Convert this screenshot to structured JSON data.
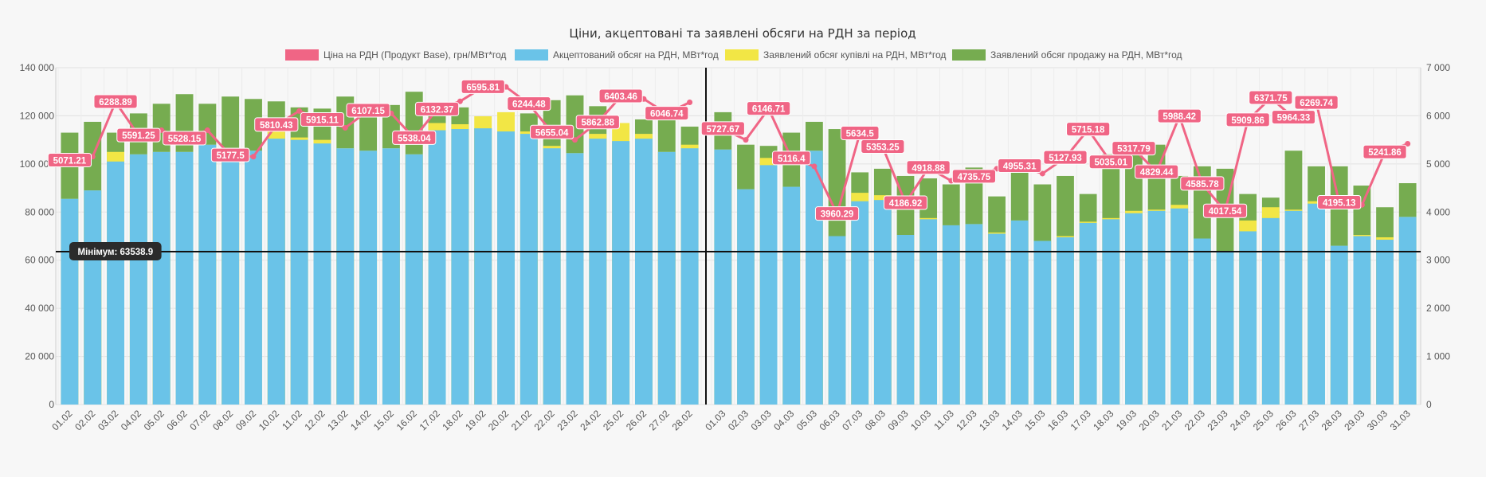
{
  "chart_data": {
    "type": "bar",
    "title": "Ціни, акцептовані та заявлені обсяги на РДН за період",
    "legend_position": "top",
    "grid": true,
    "series": [
      {
        "key": "price",
        "name": "Ціна на РДН (Продукт Base), грн/МВт*год",
        "color": "#f06585",
        "type": "line"
      },
      {
        "key": "accepted",
        "name": "Акцептований обсяг на РДН, МВт*год",
        "color": "#6ac3e8",
        "type": "bar"
      },
      {
        "key": "buy",
        "name": "Заявлений обсяг купівлі на РДН, МВт*год",
        "color": "#f2e645",
        "type": "bar"
      },
      {
        "key": "sell",
        "name": "Заявлений обсяг продажу на РДН, МВт*год",
        "color": "#76ac50",
        "type": "bar"
      }
    ],
    "y_left": {
      "min": 0,
      "max": 140000,
      "ticks": [
        "0",
        "20 000",
        "40 000",
        "60 000",
        "80 000",
        "100 000",
        "120 000",
        "140 000"
      ]
    },
    "y_right": {
      "min": 0,
      "max": 7000,
      "ticks": [
        "0",
        "1 000",
        "2 000",
        "3 000",
        "4 000",
        "5 000",
        "6 000",
        "7 000"
      ]
    },
    "minimum_line": {
      "value": 63538.9,
      "label": "Мінімум: 63538.9"
    },
    "panels": [
      {
        "categories": [
          "01.02",
          "02.02",
          "03.02",
          "04.02",
          "05.02",
          "06.02",
          "07.02",
          "08.02",
          "09.02",
          "10.02",
          "11.02",
          "12.02",
          "13.02",
          "14.02",
          "15.02",
          "16.02",
          "17.02",
          "18.02",
          "19.02",
          "20.02",
          "21.02",
          "22.02",
          "23.02",
          "24.02",
          "25.02",
          "26.02",
          "27.02",
          "28.02"
        ],
        "accepted": [
          85500,
          89000,
          101000,
          104000,
          105000,
          105000,
          108000,
          102000,
          105500,
          110500,
          110000,
          108500,
          106500,
          105500,
          106500,
          104000,
          114000,
          114500,
          114800,
          113500,
          112500,
          106500,
          104500,
          110500,
          109500,
          110500,
          105000,
          106500
        ],
        "buy": [
          85500,
          89000,
          105000,
          104000,
          105000,
          105000,
          108000,
          102000,
          105500,
          113500,
          111000,
          110000,
          106500,
          105500,
          106500,
          104000,
          117000,
          116500,
          119800,
          121500,
          113500,
          107500,
          104500,
          112500,
          117000,
          112500,
          105000,
          108000
        ],
        "sell": [
          113000,
          117500,
          113000,
          121000,
          125000,
          129000,
          125000,
          128000,
          127000,
          126000,
          123500,
          123000,
          128000,
          124000,
          124500,
          130000,
          122000,
          123500,
          114800,
          113500,
          121000,
          126500,
          128500,
          124000,
          109500,
          118500,
          118500,
          115500
        ],
        "price": [
          5071.21,
          5150.0,
          6288.89,
          5591.25,
          5700.0,
          5528.15,
          5700.0,
          5177.5,
          5150.0,
          5810.43,
          6100.0,
          5915.11,
          5750.0,
          6107.15,
          6050.0,
          5538.04,
          6132.37,
          6300.0,
          6595.81,
          6600.0,
          6244.48,
          5655.04,
          5500.0,
          5862.88,
          6403.46,
          6350.0,
          6046.74,
          6280.0
        ],
        "price_labels": [
          "5071.21",
          "",
          "6288.89",
          "5591.25",
          "",
          "5528.15",
          "",
          "5177.5",
          "",
          "5810.43",
          "",
          "5915.11",
          "",
          "6107.15",
          "",
          "5538.04",
          "6132.37",
          "",
          "6595.81",
          "",
          "6244.48",
          "5655.04",
          "",
          "5862.88",
          "6403.46",
          "",
          "6046.74",
          ""
        ]
      },
      {
        "categories": [
          "01.03",
          "02.03",
          "03.03",
          "04.03",
          "05.03",
          "06.03",
          "07.03",
          "08.03",
          "09.03",
          "10.03",
          "11.03",
          "12.03",
          "13.03",
          "14.03",
          "15.03",
          "16.03",
          "17.03",
          "18.03",
          "19.03",
          "20.03",
          "21.03",
          "22.03",
          "23.03",
          "24.03",
          "25.03",
          "26.03",
          "27.03",
          "28.03",
          "29.03",
          "30.03",
          "31.03"
        ],
        "accepted": [
          106000,
          89500,
          99500,
          90500,
          105500,
          70000,
          84500,
          85000,
          70500,
          77000,
          74500,
          75000,
          71000,
          76500,
          68000,
          69500,
          75500,
          77000,
          79500,
          80500,
          81500,
          69000,
          63500,
          72000,
          77500,
          80500,
          83500,
          66000,
          70000,
          68500,
          78000
        ],
        "buy": [
          106000,
          89500,
          102500,
          90500,
          105500,
          70000,
          88000,
          87000,
          70500,
          77500,
          74500,
          75000,
          71500,
          76500,
          68000,
          70000,
          76000,
          77500,
          80500,
          81000,
          83000,
          69000,
          63500,
          76500,
          82000,
          81000,
          84500,
          66000,
          70500,
          69500,
          78000
        ],
        "sell": [
          121500,
          108000,
          107500,
          113000,
          117500,
          114500,
          96500,
          98000,
          95000,
          94000,
          91500,
          98500,
          86500,
          100000,
          91500,
          95000,
          87500,
          104000,
          106500,
          108000,
          95000,
          99000,
          98000,
          87500,
          86000,
          105500,
          99000,
          99000,
          91000,
          82000,
          92000
        ],
        "price": [
          5727.67,
          5500.0,
          6146.71,
          5116.4,
          4950.0,
          3960.29,
          5634.5,
          5353.25,
          4186.92,
          4918.88,
          4650.0,
          4735.75,
          4900.0,
          4955.31,
          4800.0,
          5127.93,
          5715.18,
          5035.01,
          5317.79,
          4829.44,
          5988.42,
          4585.78,
          4017.54,
          5909.86,
          6371.75,
          5964.33,
          6269.74,
          4195.13,
          4150.0,
          5241.86,
          5420.0
        ],
        "price_labels": [
          "5727.67",
          "",
          "6146.71",
          "5116.4",
          "",
          "3960.29",
          "5634.5",
          "5353.25",
          "4186.92",
          "4918.88",
          "",
          "4735.75",
          "",
          "4955.31",
          "",
          "5127.93",
          "5715.18",
          "5035.01",
          "5317.79",
          "4829.44",
          "5988.42",
          "4585.78",
          "4017.54",
          "5909.86",
          "6371.75",
          "5964.33",
          "6269.74",
          "4195.13",
          "",
          "5241.86",
          ""
        ]
      }
    ]
  }
}
